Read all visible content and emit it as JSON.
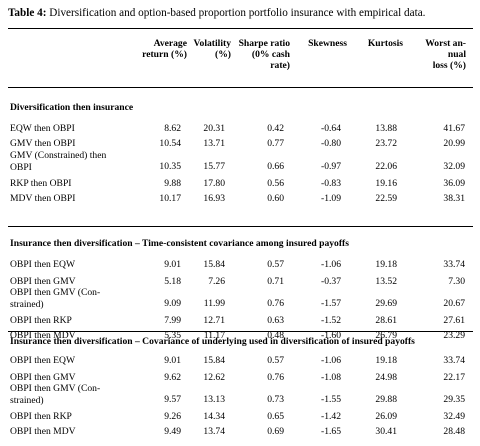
{
  "caption": {
    "prefix": "Table 4:",
    "text": " Diversification and option-based proportion portfolio insurance with empirical data."
  },
  "columns": [
    [
      "Average",
      "return (%)"
    ],
    [
      "Volatility",
      "(%)"
    ],
    [
      "Sharpe ratio",
      "(0% cash",
      "rate)"
    ],
    [
      "Skewness"
    ],
    [
      "Kurtosis"
    ],
    [
      "Worst an-",
      "nual",
      "loss (%)"
    ]
  ],
  "sections": [
    {
      "title": "Diversification then insurance",
      "rows": [
        {
          "label": [
            "EQW then OBPI"
          ],
          "values": [
            "8.62",
            "20.31",
            "0.42",
            "-0.64",
            "13.88",
            "41.67"
          ]
        },
        {
          "label": [
            "GMV then OBPI"
          ],
          "values": [
            "10.54",
            "13.71",
            "0.77",
            "-0.80",
            "23.72",
            "20.99"
          ]
        },
        {
          "label": [
            "GMV (Constrained)  then",
            "OBPI"
          ],
          "values": [
            "10.35",
            "15.77",
            "0.66",
            "-0.97",
            "22.06",
            "32.09"
          ]
        },
        {
          "label": [
            "RKP then OBPI"
          ],
          "values": [
            "9.88",
            "17.80",
            "0.56",
            "-0.83",
            "19.16",
            "36.09"
          ]
        },
        {
          "label": [
            "MDV then OBPI"
          ],
          "values": [
            "10.17",
            "16.93",
            "0.60",
            "-1.09",
            "22.59",
            "38.31"
          ]
        }
      ]
    },
    {
      "title": "Insurance then diversification – Time-consistent covariance among insured payoffs",
      "rows": [
        {
          "label": [
            "OBPI then EQW"
          ],
          "values": [
            "9.01",
            "15.84",
            "0.57",
            "-1.06",
            "19.18",
            "33.74"
          ]
        },
        {
          "label": [
            "OBPI then GMV"
          ],
          "values": [
            "5.18",
            "7.26",
            "0.71",
            "-0.37",
            "13.52",
            "7.30"
          ]
        },
        {
          "label": [
            "OBPI then GMV (Con-",
            "strained)"
          ],
          "values": [
            "9.09",
            "11.99",
            "0.76",
            "-1.57",
            "29.69",
            "20.67"
          ]
        },
        {
          "label": [
            "OBPI then RKP"
          ],
          "values": [
            "7.99",
            "12.71",
            "0.63",
            "-1.52",
            "28.61",
            "27.61"
          ]
        },
        {
          "label": [
            "OBPI then MDV"
          ],
          "values": [
            "5.35",
            "11.17",
            "0.48",
            "-1.60",
            "26.79",
            "23.29"
          ]
        }
      ]
    },
    {
      "title": "Insurance then diversification – Covariance of underlying used in diversification of insured payoffs",
      "rows": [
        {
          "label": [
            "OBPI then EQW"
          ],
          "values": [
            "9.01",
            "15.84",
            "0.57",
            "-1.06",
            "19.18",
            "33.74"
          ]
        },
        {
          "label": [
            "OBPI then GMV"
          ],
          "values": [
            "9.62",
            "12.62",
            "0.76",
            "-1.08",
            "24.98",
            "22.17"
          ]
        },
        {
          "label": [
            "OBPI then GMV (Con-",
            "strained)"
          ],
          "values": [
            "9.57",
            "13.13",
            "0.73",
            "-1.55",
            "29.88",
            "29.35"
          ]
        },
        {
          "label": [
            "OBPI then RKP"
          ],
          "values": [
            "9.26",
            "14.34",
            "0.65",
            "-1.42",
            "26.09",
            "32.49"
          ]
        },
        {
          "label": [
            "OBPI then MDV"
          ],
          "values": [
            "9.49",
            "13.74",
            "0.69",
            "-1.65",
            "30.41",
            "28.48"
          ]
        }
      ]
    }
  ]
}
